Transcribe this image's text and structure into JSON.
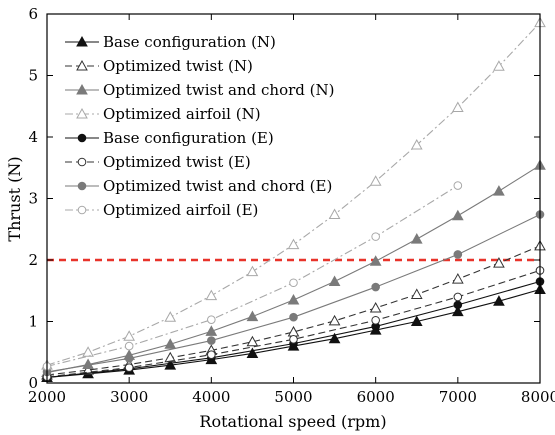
{
  "chart_data": {
    "type": "line",
    "title": "",
    "xlabel": "Rotational speed (rpm)",
    "ylabel": "Thrust (N)",
    "xlim": [
      2000,
      8000
    ],
    "ylim": [
      0,
      6
    ],
    "xticks": [
      2000,
      3000,
      4000,
      5000,
      6000,
      7000,
      8000
    ],
    "yticks": [
      0,
      1,
      2,
      3,
      4,
      5,
      6
    ],
    "grid": false,
    "legend_position": "top-left",
    "reference_line": {
      "y": 2,
      "style": "dashed",
      "color": "#e8332a"
    },
    "series": [
      {
        "name": "Base configuration (N)",
        "color": "#111111",
        "dash": "solid",
        "marker": "triangle-filled",
        "points": [
          [
            2000,
            0.09
          ],
          [
            2500,
            0.15
          ],
          [
            3000,
            0.21
          ],
          [
            3500,
            0.29
          ],
          [
            4000,
            0.38
          ],
          [
            4500,
            0.48
          ],
          [
            5000,
            0.6
          ],
          [
            5500,
            0.72
          ],
          [
            6000,
            0.86
          ],
          [
            6500,
            1.0
          ],
          [
            7000,
            1.16
          ],
          [
            7500,
            1.33
          ],
          [
            8000,
            1.52
          ]
        ]
      },
      {
        "name": "Optimized twist (N)",
        "color": "#333333",
        "dash": "dashed",
        "marker": "triangle-open",
        "points": [
          [
            2000,
            0.13
          ],
          [
            2500,
            0.21
          ],
          [
            3000,
            0.3
          ],
          [
            3500,
            0.41
          ],
          [
            4000,
            0.53
          ],
          [
            4500,
            0.67
          ],
          [
            5000,
            0.83
          ],
          [
            5500,
            1.01
          ],
          [
            6000,
            1.22
          ],
          [
            6500,
            1.44
          ],
          [
            7000,
            1.69
          ],
          [
            7500,
            1.95
          ],
          [
            8000,
            2.23
          ]
        ]
      },
      {
        "name": "Optimized twist and chord (N)",
        "color": "#7a7a7a",
        "dash": "solid",
        "marker": "triangle-filled",
        "points": [
          [
            2000,
            0.17
          ],
          [
            2500,
            0.3
          ],
          [
            3000,
            0.45
          ],
          [
            3500,
            0.63
          ],
          [
            4000,
            0.84
          ],
          [
            4500,
            1.08
          ],
          [
            5000,
            1.35
          ],
          [
            5500,
            1.65
          ],
          [
            6000,
            1.98
          ],
          [
            6500,
            2.34
          ],
          [
            7000,
            2.72
          ],
          [
            7500,
            3.12
          ],
          [
            8000,
            3.54
          ]
        ]
      },
      {
        "name": "Optimized airfoil (N)",
        "color": "#a8a8a8",
        "dash": "dashdot",
        "marker": "triangle-open",
        "points": [
          [
            2000,
            0.29
          ],
          [
            2500,
            0.5
          ],
          [
            3000,
            0.76
          ],
          [
            3500,
            1.07
          ],
          [
            4000,
            1.42
          ],
          [
            4500,
            1.81
          ],
          [
            5000,
            2.25
          ],
          [
            5500,
            2.74
          ],
          [
            6000,
            3.28
          ],
          [
            6500,
            3.87
          ],
          [
            7000,
            4.48
          ],
          [
            7500,
            5.15
          ],
          [
            8000,
            5.86
          ]
        ]
      },
      {
        "name": "Base configuration (E)",
        "color": "#111111",
        "dash": "solid",
        "marker": "circle-filled",
        "points": [
          [
            2000,
            0.09
          ],
          [
            3000,
            0.23
          ],
          [
            4000,
            0.41
          ],
          [
            5000,
            0.64
          ],
          [
            6000,
            0.92
          ],
          [
            7000,
            1.27
          ],
          [
            8000,
            1.65
          ]
        ]
      },
      {
        "name": "Optimized twist (E)",
        "color": "#333333",
        "dash": "dashed",
        "marker": "circle-open",
        "points": [
          [
            2000,
            0.1
          ],
          [
            3000,
            0.25
          ],
          [
            4000,
            0.46
          ],
          [
            5000,
            0.71
          ],
          [
            6000,
            1.02
          ],
          [
            7000,
            1.4
          ],
          [
            8000,
            1.83
          ]
        ]
      },
      {
        "name": "Optimized twist and chord (E)",
        "color": "#7a7a7a",
        "dash": "solid",
        "marker": "circle-filled",
        "points": [
          [
            2000,
            0.18
          ],
          [
            3000,
            0.4
          ],
          [
            4000,
            0.69
          ],
          [
            5000,
            1.07
          ],
          [
            6000,
            1.56
          ],
          [
            7000,
            2.09
          ],
          [
            8000,
            2.74
          ]
        ]
      },
      {
        "name": "Optimized airfoil (E)",
        "color": "#a8a8a8",
        "dash": "dashdot",
        "marker": "circle-open",
        "points": [
          [
            2000,
            0.27
          ],
          [
            3000,
            0.6
          ],
          [
            4000,
            1.03
          ],
          [
            5000,
            1.63
          ],
          [
            6000,
            2.38
          ],
          [
            7000,
            3.21
          ]
        ]
      }
    ]
  }
}
